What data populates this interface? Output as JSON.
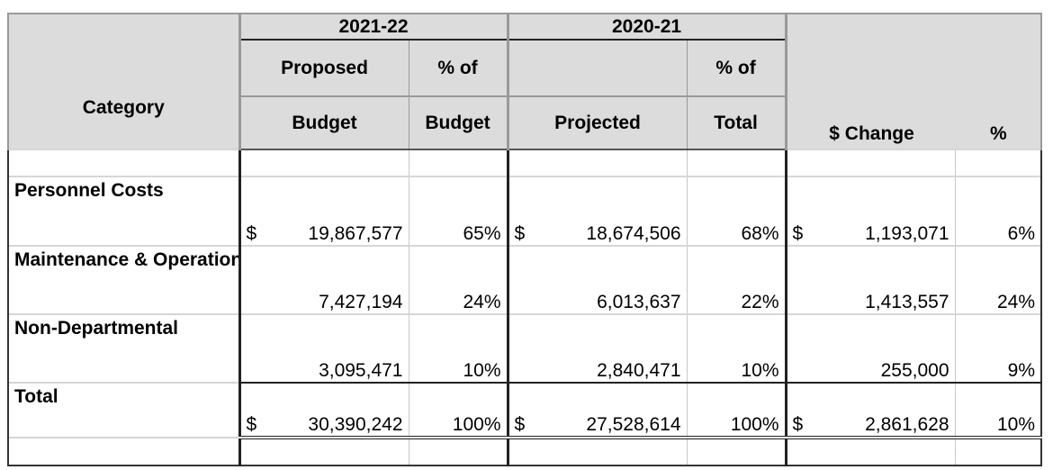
{
  "headers": {
    "group_2122": "2021-22",
    "group_2021": "2020-21",
    "category": "Category",
    "proposed_line1": "Proposed",
    "proposed_line2": "Budget",
    "pct_budget_line1": "% of",
    "pct_budget_line2": "Budget",
    "projected": "Projected",
    "pct_total_line1": "% of",
    "pct_total_line2": "Total",
    "dollar_change": "$ Change",
    "pct_change": "%"
  },
  "currency_symbol": "$",
  "rows": [
    {
      "category": "Personnel Costs",
      "budget": "19,867,577",
      "pct_budget": "65%",
      "projected": "18,674,506",
      "pct_total": "68%",
      "change": "1,193,071",
      "pct_change": "6%"
    },
    {
      "category": "Maintenance & Operations",
      "budget": "7,427,194",
      "pct_budget": "24%",
      "projected": "6,013,637",
      "pct_total": "22%",
      "change": "1,413,557",
      "pct_change": "24%"
    },
    {
      "category": "Non-Departmental",
      "budget": "3,095,471",
      "pct_budget": "10%",
      "projected": "2,840,471",
      "pct_total": "10%",
      "change": "255,000",
      "pct_change": "9%"
    }
  ],
  "total": {
    "category": "Total",
    "budget": "30,390,242",
    "pct_budget": "100%",
    "projected": "27,528,614",
    "pct_total": "100%",
    "change": "2,861,628",
    "pct_change": "10%"
  }
}
